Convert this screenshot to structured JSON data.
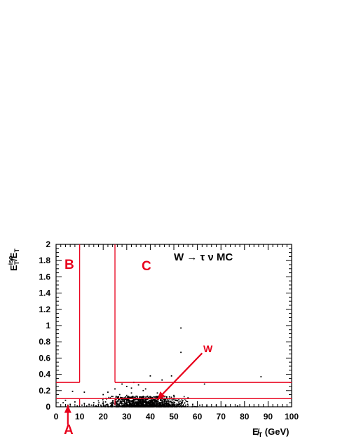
{
  "chart_data": {
    "type": "scatter",
    "title": "W → τ ν MC",
    "xlabel": {
      "main": "E̸",
      "sub": "T",
      "tail": " (GeV)"
    },
    "ylabel": {
      "main": "E",
      "sup": "iso",
      "sub": "T",
      "tail": "/E",
      "sub2": "T"
    },
    "xlim": [
      0,
      100
    ],
    "ylim": [
      0,
      2
    ],
    "xticks": [
      "0",
      "10",
      "20",
      "30",
      "40",
      "50",
      "60",
      "70",
      "80",
      "90",
      "100"
    ],
    "yticks": [
      "0",
      "0.2",
      "0.4",
      "0.6",
      "0.8",
      "1",
      "1.2",
      "1.4",
      "1.6",
      "1.8",
      "2"
    ],
    "grid": false,
    "region_labels": {
      "A": "A",
      "B": "B",
      "C": "C",
      "W": "W"
    },
    "cut_lines": {
      "met_low": 10,
      "met_high": 25,
      "iso_low": 0.1,
      "iso_high": 0.3
    },
    "points": [
      [
        3,
        0.05
      ],
      [
        4,
        0.08
      ],
      [
        5,
        0.02
      ],
      [
        6,
        0.03
      ],
      [
        8,
        0.06
      ],
      [
        9,
        0.01
      ],
      [
        11,
        0.02
      ],
      [
        12,
        0.04
      ],
      [
        13,
        0.01
      ],
      [
        14,
        0.03
      ],
      [
        15,
        0.02
      ],
      [
        16,
        0.05
      ],
      [
        17,
        0.01
      ],
      [
        18,
        0.03
      ],
      [
        19,
        0.02
      ],
      [
        20,
        0.04
      ],
      [
        21,
        0.06
      ],
      [
        22,
        0.02
      ],
      [
        24,
        0.07
      ],
      [
        26,
        0.12
      ],
      [
        27,
        0.15
      ],
      [
        28,
        0.09
      ],
      [
        29,
        0.11
      ],
      [
        30,
        0.14
      ],
      [
        31,
        0.08
      ],
      [
        32,
        0.17
      ],
      [
        33,
        0.1
      ],
      [
        34,
        0.13
      ],
      [
        35,
        0.09
      ],
      [
        36,
        0.12
      ],
      [
        37,
        0.07
      ],
      [
        38,
        0.1
      ],
      [
        39,
        0.06
      ],
      [
        40,
        0.08
      ],
      [
        41,
        0.05
      ],
      [
        42,
        0.09
      ],
      [
        44,
        0.04
      ],
      [
        45,
        0.06
      ],
      [
        47,
        0.03
      ],
      [
        49,
        0.05
      ],
      [
        51,
        0.02
      ],
      [
        53,
        0.04
      ],
      [
        55,
        0.02
      ],
      [
        58,
        0.03
      ],
      [
        61,
        0.02
      ],
      [
        64,
        0.01
      ],
      [
        68,
        0.02
      ],
      [
        72,
        0.01
      ],
      [
        77,
        0.01
      ],
      [
        20,
        0.15
      ],
      [
        22,
        0.18
      ],
      [
        25,
        0.22
      ],
      [
        28,
        0.28
      ],
      [
        30,
        0.25
      ],
      [
        33,
        0.3
      ],
      [
        35,
        0.27
      ],
      [
        37,
        0.2
      ],
      [
        40,
        0.38
      ],
      [
        45,
        0.33
      ],
      [
        49,
        0.38
      ],
      [
        53,
        0.97
      ],
      [
        53,
        0.67
      ],
      [
        63,
        0.28
      ],
      [
        87,
        0.37
      ],
      [
        12,
        0.18
      ],
      [
        7,
        0.19
      ],
      [
        32,
        0.23
      ],
      [
        38,
        0.22
      ],
      [
        43,
        0.17
      ],
      [
        50,
        0.14
      ],
      [
        56,
        0.11
      ]
    ],
    "w_arrow": {
      "from": [
        62,
        0.66
      ],
      "to": [
        43,
        0.09
      ]
    },
    "a_arrow": {
      "from": [
        5,
        -0.22
      ],
      "to": [
        5,
        0.02
      ]
    }
  }
}
